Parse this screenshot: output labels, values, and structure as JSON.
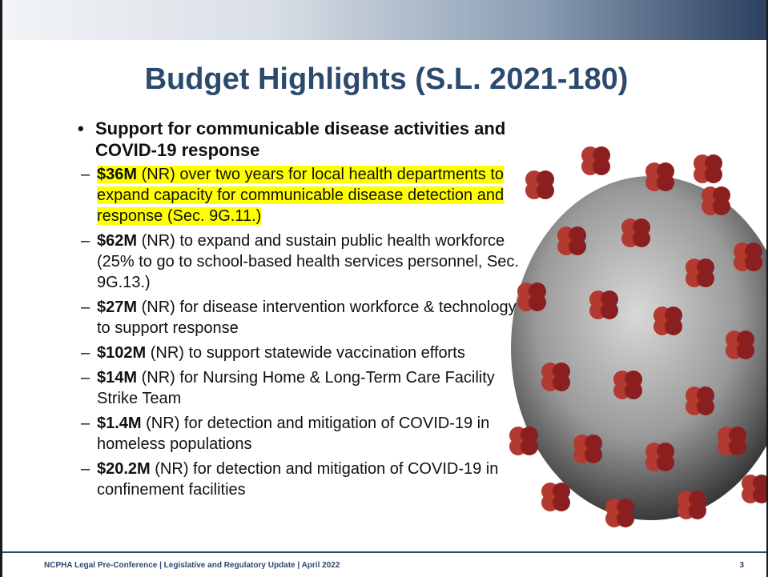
{
  "header": {
    "title": "Budget Highlights (S.L. 2021-180)"
  },
  "bullet": {
    "heading": "Support for communicable disease activities and COVID-19 response",
    "items": [
      {
        "amount": "$36M",
        "text": "(NR) over two years for local health departments to expand capacity for communicable disease detection and response (Sec. 9G.11.)"
      },
      {
        "amount": "$62M",
        "text": "(NR) to expand and sustain public health workforce (25% to go to school-based health services personnel, Sec. 9G.13.)"
      },
      {
        "amount": "$27M",
        "text": "(NR) for disease intervention workforce & technology to support response"
      },
      {
        "amount": "$102M",
        "text": "(NR) to support statewide vaccination efforts"
      },
      {
        "amount": "$14M",
        "text": "(NR) for Nursing Home & Long-Term Care Facility Strike Team"
      },
      {
        "amount": "$1.4M",
        "text": "(NR) for detection and mitigation of COVID-19 in homeless populations"
      },
      {
        "amount": "$20.2M",
        "text": "(NR) for detection and mitigation of COVID-19 in confinement facilities"
      }
    ]
  },
  "footer": {
    "text": "NCPHA Legal Pre-Conference | Legislative and Regulatory Update | April 2022",
    "page": "3"
  }
}
